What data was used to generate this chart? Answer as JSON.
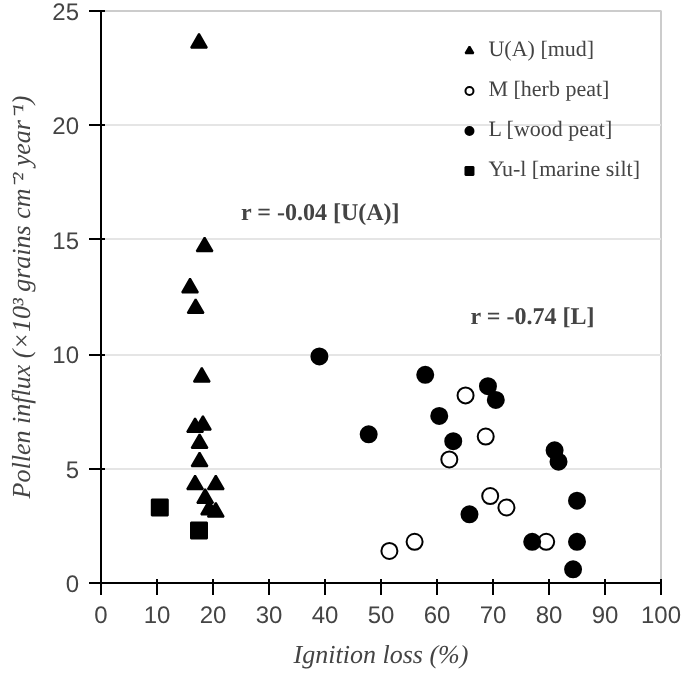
{
  "chart_data": {
    "type": "scatter",
    "xlabel": "Ignition loss (%)",
    "ylabel": "Pollen influx (×10³ grains cm⁻² year⁻¹)",
    "xlim": [
      0,
      100
    ],
    "ylim": [
      0,
      25
    ],
    "xticks": [
      0,
      10,
      20,
      30,
      40,
      50,
      60,
      70,
      80,
      90,
      100
    ],
    "yticks": [
      0,
      5,
      10,
      15,
      20,
      25
    ],
    "grid": "y",
    "legend": "top right",
    "series": [
      {
        "name": "U(A) [mud]",
        "color": "#000000",
        "marker": "triangle",
        "x": [
          17.5,
          18.5,
          15.9,
          16.9,
          18,
          16.8,
          18.2,
          17.6,
          17.6,
          16.8,
          20.5,
          18.6,
          19.3,
          20.5
        ],
        "values": [
          23.6,
          14.7,
          12.9,
          12.0,
          9.0,
          6.8,
          6.9,
          6.1,
          5.3,
          4.3,
          4.3,
          3.7,
          3.2,
          3.1
        ]
      },
      {
        "name": "M [herb peat]",
        "color": "#ffffff",
        "marker": "circle",
        "x": [
          65.1,
          68.7,
          62.2,
          69.5,
          72.4,
          56,
          51.5,
          79.5
        ],
        "values": [
          8.2,
          6.4,
          5.4,
          3.8,
          3.3,
          1.8,
          1.4,
          1.8
        ]
      },
      {
        "name": "L [wood peat]",
        "color": "#000000",
        "marker": "circle",
        "x": [
          39,
          47.8,
          57.9,
          69.1,
          70.5,
          60.4,
          62.9,
          81,
          81.7,
          85,
          65.8,
          77,
          85,
          84.3
        ],
        "values": [
          9.9,
          6.5,
          9.1,
          8.6,
          8.0,
          7.3,
          6.2,
          5.8,
          5.3,
          3.6,
          3.0,
          1.8,
          1.8,
          0.6
        ]
      },
      {
        "name": "Yu-l [marine silt]",
        "color": "#000000",
        "marker": "square",
        "x": [
          10.5,
          17.5
        ],
        "values": [
          3.3,
          2.3
        ]
      }
    ],
    "annotations": [
      "r = -0.04  [U(A)]",
      "r = -0.74 [L]"
    ]
  }
}
